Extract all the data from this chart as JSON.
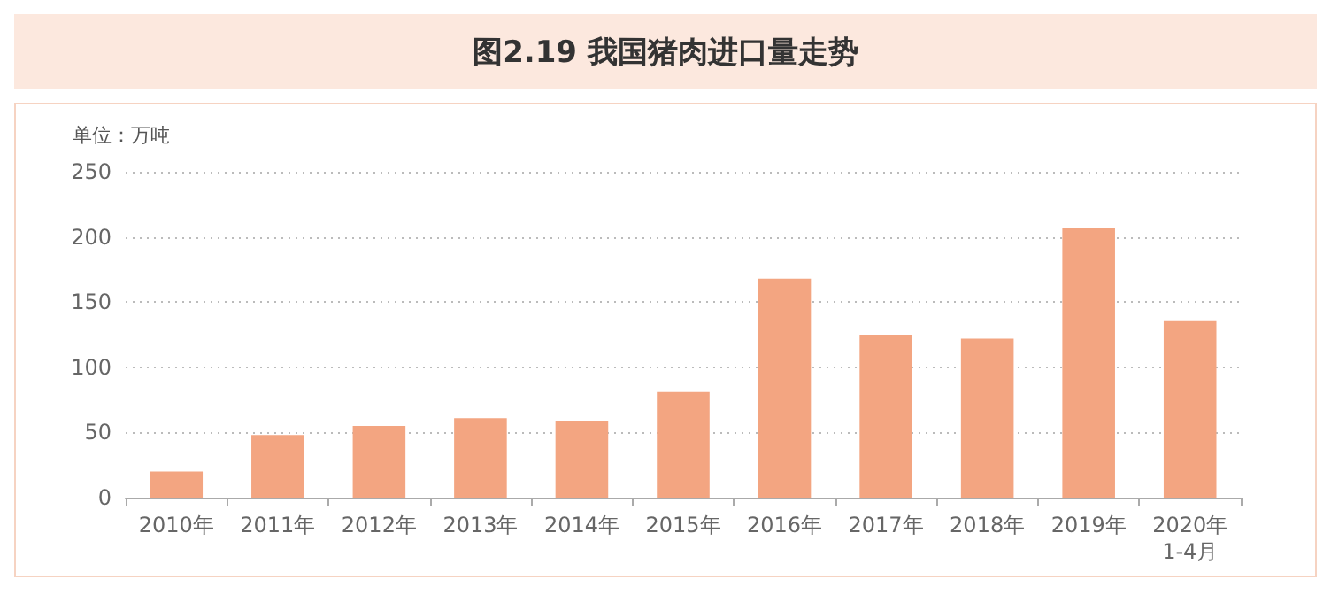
{
  "chart_data": {
    "type": "bar",
    "title": "图2.19 我国猪肉进口量走势",
    "ylabel": "单位：万吨",
    "categories": [
      "2010年",
      "2011年",
      "2012年",
      "2013年",
      "2014年",
      "2015年",
      "2016年",
      "2017年",
      "2018年",
      "2019年",
      "2020年\n1-4月"
    ],
    "values": [
      20,
      48,
      55,
      61,
      59,
      81,
      168,
      125,
      122,
      207,
      136
    ],
    "color": "#f3a581",
    "ylim": [
      0,
      250
    ],
    "yticks": [
      0,
      50,
      100,
      150,
      200,
      250
    ],
    "grid": "y"
  }
}
